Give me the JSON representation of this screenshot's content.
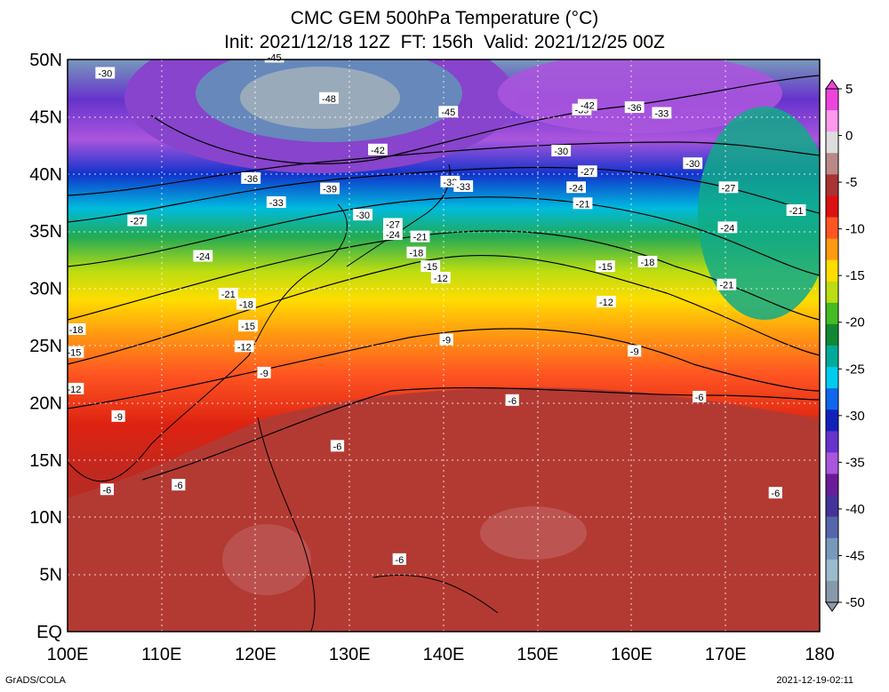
{
  "title_line1": "CMC GEM 500hPa Temperature (°C)",
  "title_line2": "Init: 2021/12/18 12Z  FT: 156h  Valid: 2021/12/25 00Z",
  "footer_left": "GrADS/COLA",
  "footer_right": "2021-12-19-02:11",
  "lat_labels": [
    "50N",
    "45N",
    "40N",
    "35N",
    "30N",
    "25N",
    "20N",
    "15N",
    "10N",
    "5N",
    "EQ"
  ],
  "lon_labels": [
    "100E",
    "110E",
    "120E",
    "130E",
    "140E",
    "150E",
    "160E",
    "170E",
    "180"
  ],
  "colorbar_labels": [
    "5",
    "0",
    "-5",
    "-10",
    "-15",
    "-20",
    "-25",
    "-30",
    "-35",
    "-40",
    "-45",
    "-50"
  ],
  "colorbar_colors": [
    "#ee44dd",
    "#ff99ee",
    "#dddddd",
    "#bb8888",
    "#aa3333",
    "#dd1111",
    "#ff5522",
    "#ff9911",
    "#ffdd00",
    "#bbdd11",
    "#44bb22",
    "#118833",
    "#00aa99",
    "#00ccee",
    "#1166ee",
    "#1122bb",
    "#6633cc",
    "#aa55dd",
    "#6a1c9a",
    "#443399",
    "#5566aa",
    "#7799bb",
    "#99bbcc",
    "#8899aa"
  ],
  "contour_labels": [
    {
      "text": "-30",
      "lon": 104,
      "lat": 48.8
    },
    {
      "text": "-45",
      "lon": 122,
      "lat": 50.2
    },
    {
      "text": "-48",
      "lon": 127.8,
      "lat": 46.6
    },
    {
      "text": "-45",
      "lon": 140.5,
      "lat": 45.4
    },
    {
      "text": "-42",
      "lon": 133,
      "lat": 42.1
    },
    {
      "text": "-39",
      "lon": 154.7,
      "lat": 45.6
    },
    {
      "text": "-42",
      "lon": 155.3,
      "lat": 46
    },
    {
      "text": "-36",
      "lon": 160.3,
      "lat": 45.8
    },
    {
      "text": "-33",
      "lon": 163.2,
      "lat": 45.3
    },
    {
      "text": "-30",
      "lon": 152.5,
      "lat": 42
    },
    {
      "text": "-30",
      "lon": 166.5,
      "lat": 40.9
    },
    {
      "text": "-27",
      "lon": 155.3,
      "lat": 40.2
    },
    {
      "text": "-24",
      "lon": 154.1,
      "lat": 38.8
    },
    {
      "text": "-21",
      "lon": 154.8,
      "lat": 37.4
    },
    {
      "text": "-27",
      "lon": 170.3,
      "lat": 38.8
    },
    {
      "text": "-21",
      "lon": 177.5,
      "lat": 36.8
    },
    {
      "text": "-24",
      "lon": 170.2,
      "lat": 35.3
    },
    {
      "text": "-36",
      "lon": 119.5,
      "lat": 39.6
    },
    {
      "text": "-33",
      "lon": 122.2,
      "lat": 37.5
    },
    {
      "text": "-39",
      "lon": 127.9,
      "lat": 38.7
    },
    {
      "text": "-30",
      "lon": 131.4,
      "lat": 36.4
    },
    {
      "text": "-33",
      "lon": 140.7,
      "lat": 39.3
    },
    {
      "text": "-33",
      "lon": 142.1,
      "lat": 38.9
    },
    {
      "text": "-27",
      "lon": 134.6,
      "lat": 35.6
    },
    {
      "text": "-24",
      "lon": 134.6,
      "lat": 34.7
    },
    {
      "text": "-21",
      "lon": 137.5,
      "lat": 34.5
    },
    {
      "text": "-18",
      "lon": 137.1,
      "lat": 33.1
    },
    {
      "text": "-15",
      "lon": 138.6,
      "lat": 31.9
    },
    {
      "text": "-12",
      "lon": 139.7,
      "lat": 30.9
    },
    {
      "text": "-27",
      "lon": 107.4,
      "lat": 35.9
    },
    {
      "text": "-24",
      "lon": 114.4,
      "lat": 32.8
    },
    {
      "text": "-21",
      "lon": 117.1,
      "lat": 29.5
    },
    {
      "text": "-18",
      "lon": 119,
      "lat": 28.6
    },
    {
      "text": "-15",
      "lon": 119.2,
      "lat": 26.7
    },
    {
      "text": "-12",
      "lon": 118.8,
      "lat": 24.9
    },
    {
      "text": "-9",
      "lon": 120.9,
      "lat": 22.6
    },
    {
      "text": "-18",
      "lon": 100.9,
      "lat": 26.4
    },
    {
      "text": "-15",
      "lon": 100.7,
      "lat": 24.4
    },
    {
      "text": "-12",
      "lon": 100.7,
      "lat": 21.2
    },
    {
      "text": "-9",
      "lon": 105.4,
      "lat": 18.8
    },
    {
      "text": "-6",
      "lon": 104.2,
      "lat": 12.4
    },
    {
      "text": "-6",
      "lon": 111.8,
      "lat": 12.8
    },
    {
      "text": "-6",
      "lon": 128.7,
      "lat": 16.2
    },
    {
      "text": "-6",
      "lon": 147.3,
      "lat": 20.2
    },
    {
      "text": "-6",
      "lon": 167.2,
      "lat": 20.5
    },
    {
      "text": "-6",
      "lon": 175.3,
      "lat": 12.1
    },
    {
      "text": "-6",
      "lon": 135.3,
      "lat": 6.3
    },
    {
      "text": "-9",
      "lon": 140.3,
      "lat": 25.5
    },
    {
      "text": "-9",
      "lon": 160.3,
      "lat": 24.5
    },
    {
      "text": "-12",
      "lon": 157.3,
      "lat": 28.8
    },
    {
      "text": "-15",
      "lon": 157.2,
      "lat": 31.9
    },
    {
      "text": "-18",
      "lon": 161.7,
      "lat": 32.3
    },
    {
      "text": "-21",
      "lon": 170.1,
      "lat": 30.3
    }
  ]
}
